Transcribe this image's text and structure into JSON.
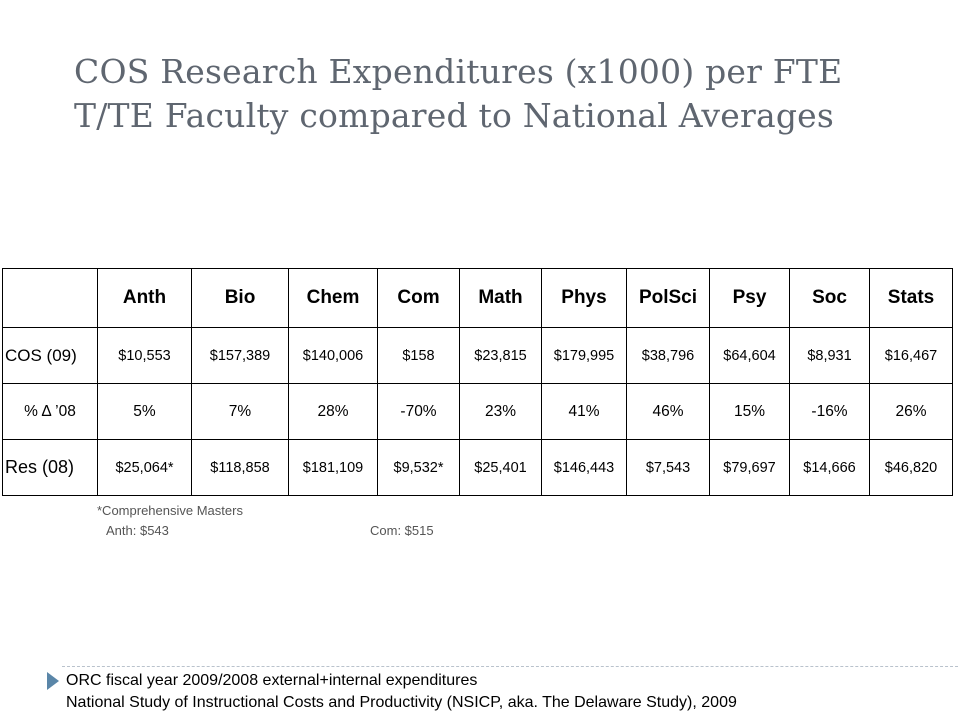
{
  "title": {
    "line1": "COS Research Expenditures (x1000) per FTE",
    "line2": "T/TE Faculty compared to National Averages"
  },
  "table": {
    "headers": [
      "",
      "Anth",
      "Bio",
      "Chem",
      "Com",
      "Math",
      "Phys",
      "PolSci",
      "Psy",
      "Soc",
      "Stats"
    ],
    "rows": [
      {
        "label": "COS (09)",
        "cells": [
          "$10,553",
          "$157,389",
          "$140,006",
          "$158",
          "$23,815",
          "$179,995",
          "$38,796",
          "$64,604",
          "$8,931",
          "$16,467"
        ]
      },
      {
        "label": "% Δ ’08",
        "cells": [
          "5%",
          "7%",
          "28%",
          "-70%",
          "23%",
          "41%",
          "46%",
          "15%",
          "-16%",
          "26%"
        ]
      },
      {
        "label": "Res (08)",
        "cells": [
          "$25,064*",
          "$118,858",
          "$181,109",
          "$9,532*",
          "$25,401",
          "$146,443",
          "$7,543",
          "$79,697",
          "$14,666",
          "$46,820"
        ]
      }
    ]
  },
  "notes": {
    "footnote_title": "*Comprehensive Masters",
    "anth": "Anth: $543",
    "com": "Com: $515"
  },
  "footer": {
    "line1": "ORC fiscal year 2009/2008 external+internal expenditures",
    "line2": "National Study of Instructional Costs and Productivity (NSICP, aka. The Delaware Study), 2009"
  },
  "colors": {
    "title": "#5f6670",
    "bullet_arrow": "#5a86a8",
    "divider": "#b9c2cc"
  }
}
